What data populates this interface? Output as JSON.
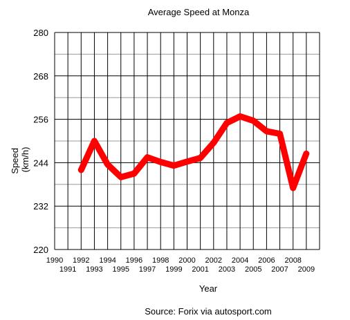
{
  "chart_data": {
    "type": "line",
    "title": "Average Speed at Monza",
    "xlabel": "Year",
    "ylabel": "Speed (km/h)",
    "ylabel_lines": [
      "Speed",
      "(km/h)"
    ],
    "source": "Source: Forix via autosport.com",
    "xlim": [
      1990,
      2010
    ],
    "ylim": [
      220,
      280
    ],
    "yticks": [
      220,
      232,
      244,
      256,
      268,
      280
    ],
    "ytick_labels": [
      "220",
      "232",
      "244",
      "256",
      "268",
      "280"
    ],
    "xticks": [
      1990,
      1991,
      1992,
      1993,
      1994,
      1995,
      1996,
      1997,
      1998,
      1999,
      2000,
      2001,
      2002,
      2003,
      2004,
      2005,
      2006,
      2007,
      2008,
      2009
    ],
    "xtick_labels": [
      "1990",
      "1991",
      "1992",
      "1993",
      "1994",
      "1995",
      "1996",
      "1997",
      "1998",
      "1999",
      "2000",
      "2001",
      "2002",
      "2003",
      "2004",
      "2005",
      "2006",
      "2007",
      "2008",
      "2009"
    ],
    "grid": true,
    "legend": "none",
    "series": [
      {
        "color": "#ff0000",
        "x": [
          1992,
          1993,
          1994,
          1995,
          1996,
          1997,
          1998,
          1999,
          2000,
          2001,
          2002,
          2003,
          2004,
          2005,
          2006,
          2007,
          2008,
          2009
        ],
        "y": [
          242,
          250,
          243.5,
          240,
          241,
          245.5,
          244.2,
          243.2,
          244.3,
          245.3,
          249.5,
          255,
          256.8,
          255.6,
          252.7,
          252,
          237,
          246.5
        ]
      }
    ]
  }
}
